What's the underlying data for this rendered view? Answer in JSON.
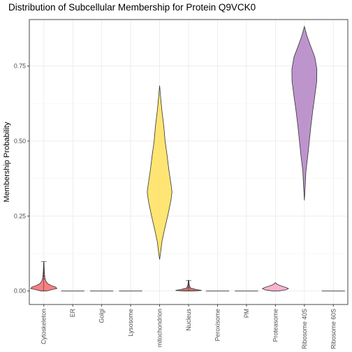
{
  "chart_data": {
    "type": "violin",
    "title": "Distribution of Subcellular Membership for Protein Q9VCK0",
    "xlabel": "",
    "ylabel": "Membership Probability",
    "ylim": [
      -0.045,
      0.905
    ],
    "yticks": [
      0.0,
      0.25,
      0.5,
      0.75
    ],
    "ytick_labels": [
      "0.00",
      "0.25",
      "0.50",
      "0.75"
    ],
    "grid": true,
    "categories": [
      "Cytoskeleton",
      "ER",
      "Golgi",
      "Lysosome",
      "mitochondrion",
      "Nucleus",
      "Peroxisome",
      "PM",
      "Proteasome",
      "Ribosome 40S",
      "Ribosome 60S"
    ],
    "series": [
      {
        "category": "Cytoskeleton",
        "color": "#f8696b",
        "min": 0.0,
        "max": 0.098,
        "outliers": [
          0.09,
          0.075,
          0.06,
          0.05,
          0.04
        ],
        "profile": [
          [
            0.0,
            0.2
          ],
          [
            0.004,
            0.55
          ],
          [
            0.008,
            1.0
          ],
          [
            0.013,
            0.92
          ],
          [
            0.018,
            0.6
          ],
          [
            0.024,
            0.32
          ],
          [
            0.032,
            0.16
          ],
          [
            0.045,
            0.08
          ],
          [
            0.065,
            0.04
          ],
          [
            0.085,
            0.02
          ],
          [
            0.098,
            0.01
          ]
        ]
      },
      {
        "category": "ER",
        "color": "#d9d9d9",
        "min": 0.0,
        "max": 0.0
      },
      {
        "category": "Golgi",
        "color": "#d9d9d9",
        "min": 0.0,
        "max": 0.0
      },
      {
        "category": "Lysosome",
        "color": "#d9d9d9",
        "min": 0.0,
        "max": 0.0
      },
      {
        "category": "mitochondrion",
        "color": "#ffe15a",
        "min": 0.105,
        "max": 0.685,
        "profile": [
          [
            0.105,
            0.0
          ],
          [
            0.13,
            0.08
          ],
          [
            0.165,
            0.18
          ],
          [
            0.2,
            0.35
          ],
          [
            0.25,
            0.62
          ],
          [
            0.3,
            0.86
          ],
          [
            0.33,
            0.95
          ],
          [
            0.36,
            0.86
          ],
          [
            0.4,
            0.72
          ],
          [
            0.45,
            0.58
          ],
          [
            0.5,
            0.42
          ],
          [
            0.55,
            0.32
          ],
          [
            0.6,
            0.18
          ],
          [
            0.64,
            0.09
          ],
          [
            0.685,
            0.0
          ]
        ]
      },
      {
        "category": "Nucleus",
        "color": "#bf5b5b",
        "min": 0.0,
        "max": 0.035,
        "outliers": [
          0.033,
          0.02,
          0.012
        ],
        "profile": [
          [
            0.0,
            0.4
          ],
          [
            0.002,
            1.0
          ],
          [
            0.005,
            0.6
          ],
          [
            0.01,
            0.15
          ],
          [
            0.02,
            0.05
          ],
          [
            0.035,
            0.02
          ]
        ]
      },
      {
        "category": "Peroxisome",
        "color": "#d9d9d9",
        "min": 0.0,
        "max": 0.002
      },
      {
        "category": "PM",
        "color": "#d9d9d9",
        "min": 0.0,
        "max": 0.0
      },
      {
        "category": "Proteasome",
        "color": "#f9a6c8",
        "min": 0.0,
        "max": 0.028,
        "profile": [
          [
            0.0,
            0.2
          ],
          [
            0.004,
            0.8
          ],
          [
            0.008,
            1.0
          ],
          [
            0.012,
            0.8
          ],
          [
            0.017,
            0.45
          ],
          [
            0.022,
            0.15
          ],
          [
            0.028,
            0.0
          ]
        ]
      },
      {
        "category": "Ribosome 40S",
        "color": "#b381c4",
        "min": 0.302,
        "max": 0.882,
        "profile": [
          [
            0.302,
            0.0
          ],
          [
            0.34,
            0.05
          ],
          [
            0.4,
            0.12
          ],
          [
            0.45,
            0.26
          ],
          [
            0.5,
            0.38
          ],
          [
            0.55,
            0.5
          ],
          [
            0.6,
            0.64
          ],
          [
            0.65,
            0.8
          ],
          [
            0.7,
            0.95
          ],
          [
            0.74,
            0.96
          ],
          [
            0.78,
            0.8
          ],
          [
            0.82,
            0.45
          ],
          [
            0.85,
            0.2
          ],
          [
            0.882,
            0.0
          ]
        ]
      },
      {
        "category": "Ribosome 60S",
        "color": "#d9d9d9",
        "min": 0.0,
        "max": 0.0
      }
    ]
  }
}
